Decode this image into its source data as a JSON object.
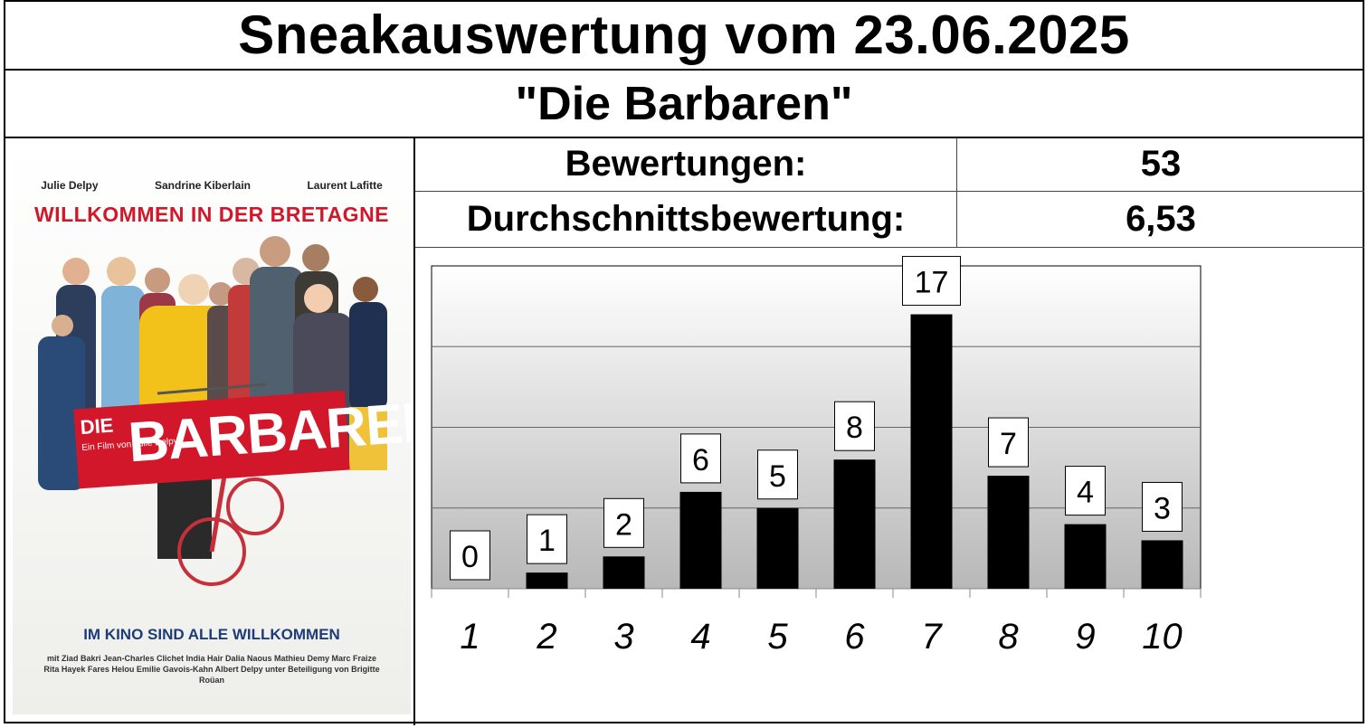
{
  "header": {
    "title": "Sneakauswertung vom 23.06.2025",
    "movie": "\"Die Barbaren\""
  },
  "stats": {
    "ratings_label": "Bewertungen:",
    "ratings_value": "53",
    "average_label": "Durchschnittsbewertung:",
    "average_value": "6,53"
  },
  "poster": {
    "cast": [
      "Julie Delpy",
      "Sandrine Kiberlain",
      "Laurent Lafitte"
    ],
    "tagline": "WILLKOMMEN IN DER BRETAGNE",
    "title_die": "DIE",
    "title_main": "BARBAREN",
    "director_line": "Ein Film von Julie Delpy",
    "bottom_tagline": "IM KINO SIND ALLE WILLKOMMEN",
    "credits": "mit Ziad Bakri  Jean-Charles Clichet  India Hair  Dalia Naous  Mathieu Demy  Marc Fraize  Rita Hayek  Fares Helou  Emilie Gavois-Kahn  Albert Delpy  unter Beteiligung von Brigitte Roüan"
  },
  "chart_data": {
    "type": "bar",
    "categories": [
      "1",
      "2",
      "3",
      "4",
      "5",
      "6",
      "7",
      "8",
      "9",
      "10"
    ],
    "values": [
      0,
      1,
      2,
      6,
      5,
      8,
      17,
      7,
      4,
      3
    ],
    "ylim": [
      0,
      20
    ],
    "grid": true,
    "bar_color": "#000000",
    "data_labels": true
  }
}
